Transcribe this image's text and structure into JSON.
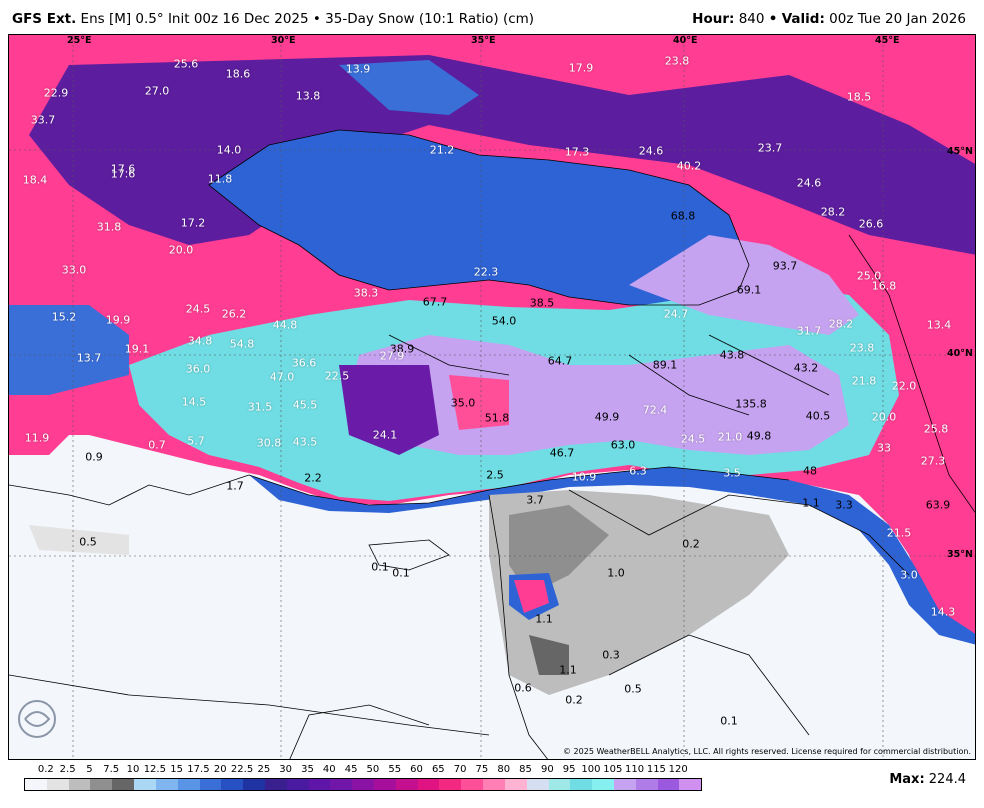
{
  "header": {
    "model": "GFS Ext.",
    "run": "Ens [M] 0.5° Init 00z 16 Dec 2025 • 35-Day Snow (10:1 Ratio) (cm)",
    "hour_label": "Hour:",
    "hour_value": "840",
    "sep": "•",
    "valid_label": "Valid:",
    "valid_value": "00z Tue 20 Jan 2026"
  },
  "map": {
    "longitude_labels": [
      "25°E",
      "30°E",
      "35°E",
      "40°E",
      "45°E"
    ],
    "latitude_labels": [
      "45°N",
      "40°N",
      "35°N"
    ],
    "copyright": "© 2025 WeatherBELL Analytics, LLC. All rights reserved. License required for commercial distribution.",
    "logo_text": "WeatherBELL",
    "values": [
      "22.9",
      "25.6",
      "27.0",
      "18.6",
      "13.9",
      "17.9",
      "23.8",
      "18.5",
      "33.7",
      "13.8",
      "14.0",
      "21.2",
      "17.3",
      "24.6",
      "23.7",
      "17.6",
      "17.6",
      "18.4",
      "11.8",
      "40.2",
      "24.6",
      "45°N",
      "28.2",
      "26.6",
      "31.8",
      "17.2",
      "20.0",
      "68.8",
      "33.0",
      "93.7",
      "22.3",
      "25.0",
      "16.8",
      "38.3",
      "67.7",
      "38.5",
      "69.1",
      "15.2",
      "19.9",
      "24.5",
      "26.2",
      "44.8",
      "54.0",
      "24.7",
      "31.7",
      "28.2",
      "13.4",
      "34.8",
      "54.8",
      "19.1",
      "38.9",
      "27.9",
      "64.7",
      "43.8",
      "23.8",
      "13.7",
      "36.6",
      "89.1",
      "43.2",
      "21.8",
      "22.0",
      "36.0",
      "47.0",
      "22.5",
      "35.0",
      "72.4",
      "135.8",
      "40.5",
      "14.5",
      "31.5",
      "45.5",
      "51.8",
      "49.9",
      "49.8",
      "20.0",
      "25.8",
      "24.1",
      "30.8",
      "43.5",
      "63.0",
      "24.5",
      "21.0",
      "33",
      "11.9",
      "5.7",
      "0.7",
      "46.7",
      "27.3",
      "10.9",
      "6.3",
      "3.5",
      "48",
      "0.9",
      "1.7",
      "2.2",
      "2.5",
      "3.7",
      "1.1",
      "3.3",
      "63.9",
      "0.5",
      "0.2",
      "21.5",
      "0.1",
      "1.0",
      "0.1",
      "3.0",
      "14.3",
      "1.1",
      "0.3",
      "1.1",
      "0.5",
      "0.6",
      "0.2",
      "0.1"
    ]
  },
  "legend": {
    "ticks": [
      "0.2",
      "2.5",
      "5",
      "7.5",
      "10",
      "12.5",
      "15",
      "17.5",
      "20",
      "22.5",
      "25",
      "30",
      "35",
      "40",
      "45",
      "50",
      "55",
      "60",
      "65",
      "70",
      "75",
      "80",
      "85",
      "90",
      "95",
      "100",
      "105",
      "110",
      "115",
      "120"
    ],
    "colors": [
      "#f4f6fb",
      "#e3e3e3",
      "#bdbdbd",
      "#8f8f8f",
      "#666666",
      "#a9d7f4",
      "#7fb6ef",
      "#5a94e6",
      "#3a6fd8",
      "#2750c2",
      "#2033a3",
      "#3a1f8f",
      "#4a1aa0",
      "#5e15a8",
      "#7016a8",
      "#8a12a4",
      "#a60f9c",
      "#c40f8e",
      "#df1482",
      "#f32880",
      "#ff4f98",
      "#ff7fb5",
      "#ffb3d2",
      "#d6dff2",
      "#9fe8e8",
      "#6fdde3",
      "#86f0f0",
      "#c6a3f0",
      "#b07ce8",
      "#9b59e0",
      "#cf90f0"
    ],
    "max_label": "Max:",
    "max_value": "224.4"
  }
}
